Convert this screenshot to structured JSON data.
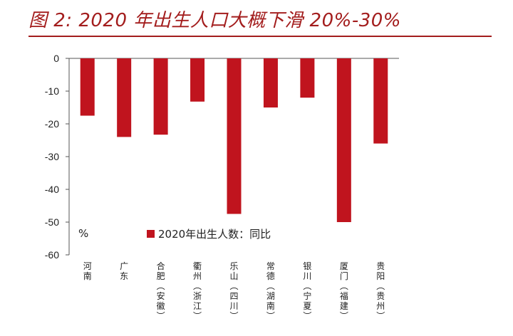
{
  "title": "图 2: 2020 年出生人口大概下滑 20%-30%",
  "chart_data": {
    "type": "bar",
    "categories": [
      "河南",
      "广东",
      "合肥（安徽）",
      "衢州（浙江）",
      "乐山（四川）",
      "常德（湖南）",
      "银川（宁夏）",
      "厦门（福建）",
      "贵阳（贵州）"
    ],
    "category_lines": [
      [
        "河南"
      ],
      [
        "广东"
      ],
      [
        "合肥",
        "（安徽）"
      ],
      [
        "衢州",
        "（浙江）"
      ],
      [
        "乐山",
        "（四川）"
      ],
      [
        "常德",
        "（湖南）"
      ],
      [
        "银川",
        "（宁夏）"
      ],
      [
        "厦门",
        "（福建）"
      ],
      [
        "贵阳",
        "（贵州）"
      ]
    ],
    "series": [
      {
        "name": "2020年出生人数：同比",
        "values": [
          -17.5,
          -24,
          -23.3,
          -13.2,
          -47.5,
          -15,
          -12,
          -50,
          -26
        ]
      }
    ],
    "ylim": [
      -60,
      0
    ],
    "yticks": [
      0,
      -10,
      -20,
      -30,
      -40,
      -50,
      -60
    ],
    "unit_label": "%",
    "legend_position": "inside-bottom-left",
    "grid": false,
    "colors": {
      "bar": "#c0141e",
      "axis": "#555555",
      "title": "#a31d1d"
    }
  }
}
